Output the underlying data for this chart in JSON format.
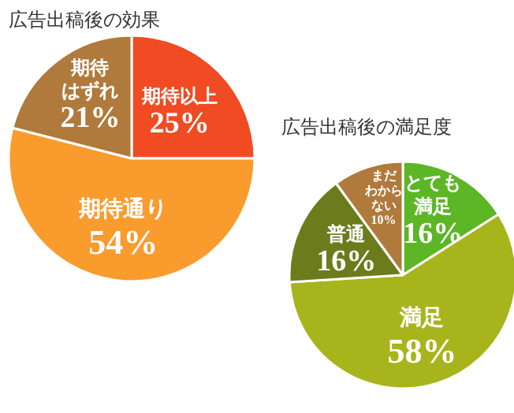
{
  "chart_data": [
    {
      "type": "pie",
      "title": "広告出稿後の効果",
      "categories": [
        "期待以上",
        "期待通り",
        "期待はずれ"
      ],
      "values": [
        25,
        54,
        21
      ],
      "colors": [
        "#f04b23",
        "#fa9b2d",
        "#b07a3c"
      ],
      "value_labels": [
        "25%",
        "54%",
        "21%"
      ]
    },
    {
      "type": "pie",
      "title": "広告出稿後の満足度",
      "categories": [
        "とても満足",
        "満足",
        "普通",
        "まだわからない"
      ],
      "values": [
        16,
        58,
        16,
        10
      ],
      "colors": [
        "#5cb625",
        "#a8b41c",
        "#6c7c1c",
        "#b07a3c"
      ],
      "value_labels": [
        "16%",
        "58%",
        "16%",
        "10%"
      ]
    }
  ]
}
